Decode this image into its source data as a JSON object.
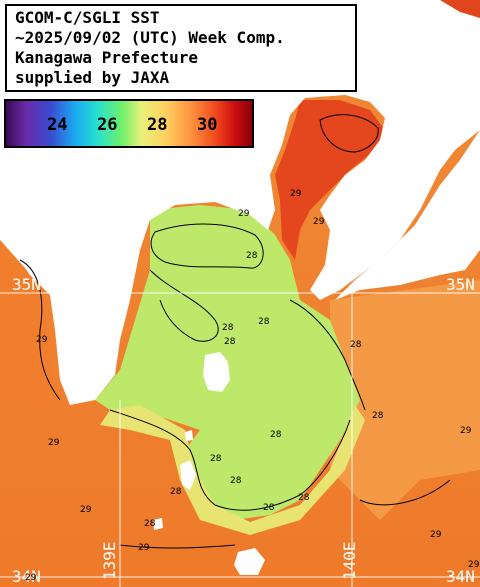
{
  "title": {
    "lines": [
      "GCOM-C/SGLI SST",
      "~2025/09/02 (UTC) Week Comp.",
      "Kanagawa Prefecture",
      "supplied by JAXA"
    ]
  },
  "legend": {
    "ticks": [
      "24",
      "26",
      "28",
      "30"
    ]
  },
  "grid": {
    "lat_labels": [
      "35N",
      "35N",
      "34N",
      "34N"
    ],
    "lon_labels": [
      "139E",
      "140E"
    ]
  },
  "contours": {
    "labels": [
      "29",
      "28",
      "29",
      "29",
      "29",
      "28",
      "28",
      "28",
      "28",
      "28",
      "28",
      "28",
      "28",
      "29",
      "28",
      "29",
      "28",
      "28",
      "28",
      "29",
      "29",
      "29",
      "29",
      "29"
    ]
  },
  "colors": {
    "land": "#ffffff",
    "sst_warm": "#f07a2a",
    "sst_mid": "#f4a04a",
    "sst_cool": "#b8e860",
    "sst_hot": "#e03a1a"
  }
}
